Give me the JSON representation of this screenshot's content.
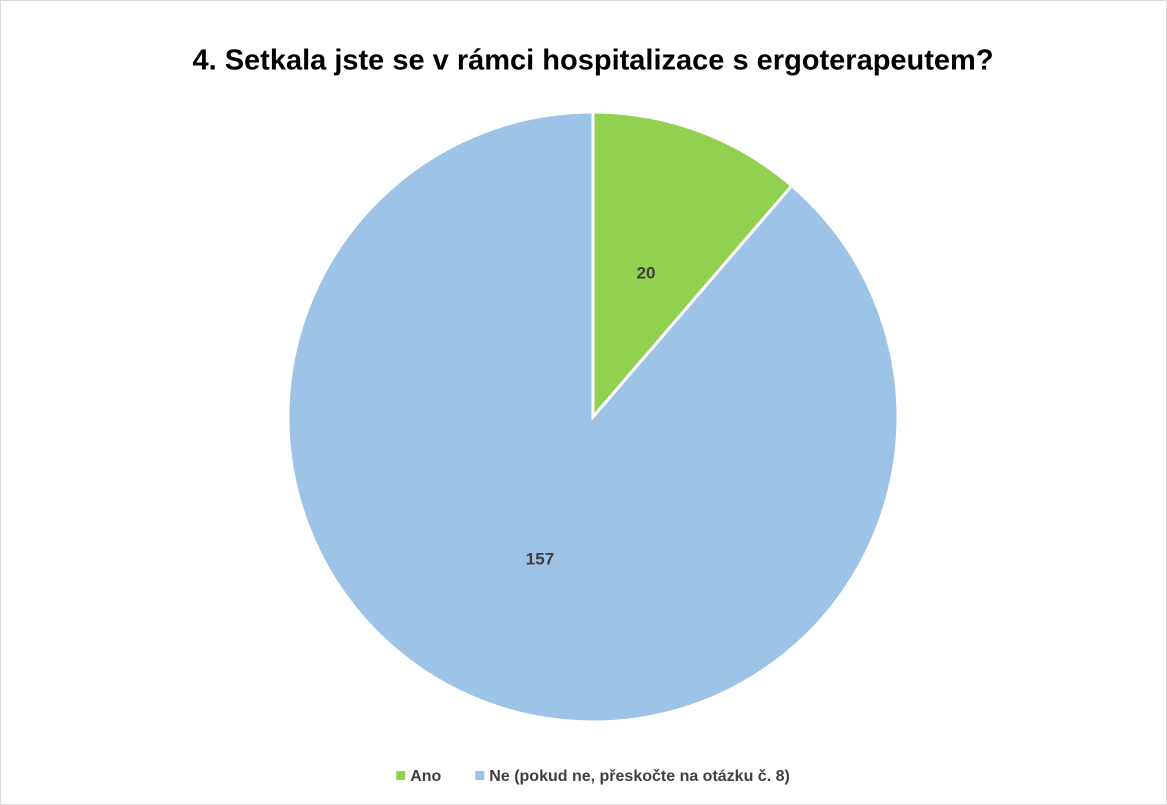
{
  "chart_data": {
    "type": "pie",
    "title": "4. Setkala jste se v rámci hospitalizace s ergoterapeutem?",
    "categories": [
      "Ano",
      "Ne (pokud ne, přeskočte na otázku č. 8)"
    ],
    "values": [
      20,
      157
    ],
    "colors": [
      "#92d050",
      "#9dc3e6"
    ],
    "legend": "bottom"
  }
}
